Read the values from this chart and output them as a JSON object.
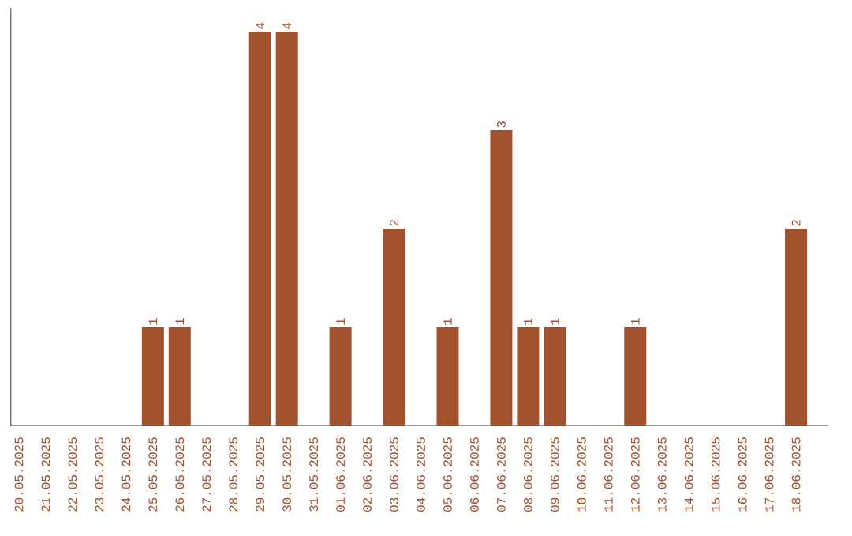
{
  "chart_data": {
    "type": "bar",
    "categories": [
      "20.05.2025",
      "21.05.2025",
      "22.05.2025",
      "23.05.2025",
      "24.05.2025",
      "25.05.2025",
      "26.05.2025",
      "27.05.2025",
      "28.05.2025",
      "29.05.2025",
      "30.05.2025",
      "31.05.2025",
      "01.06.2025",
      "02.06.2025",
      "03.06.2025",
      "04.06.2025",
      "05.06.2025",
      "06.06.2025",
      "07.06.2025",
      "08.06.2025",
      "09.06.2025",
      "10.06.2025",
      "11.06.2025",
      "12.06.2025",
      "13.06.2025",
      "14.06.2025",
      "15.06.2025",
      "16.06.2025",
      "17.06.2025",
      "18.06.2025"
    ],
    "values": [
      0,
      0,
      0,
      0,
      0,
      1,
      1,
      0,
      0,
      4,
      4,
      0,
      1,
      0,
      2,
      0,
      1,
      0,
      3,
      1,
      1,
      0,
      0,
      1,
      0,
      0,
      0,
      0,
      0,
      2
    ],
    "value_labels": [
      null,
      null,
      null,
      null,
      null,
      "1",
      "1",
      null,
      null,
      "4",
      "4",
      null,
      "1",
      null,
      "2",
      null,
      "1",
      null,
      "3",
      "1",
      "1",
      null,
      null,
      "1",
      null,
      null,
      null,
      null,
      null,
      "2"
    ],
    "color": "#a0522d"
  }
}
